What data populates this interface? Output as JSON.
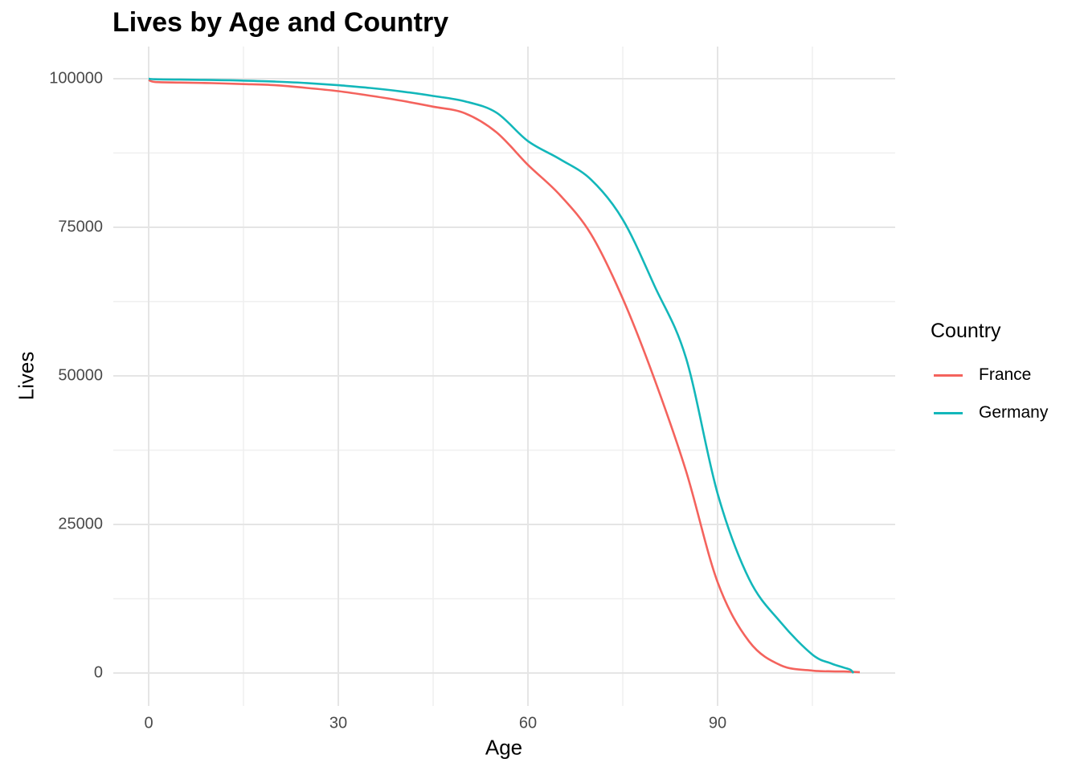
{
  "title": "Lives by Age and Country",
  "chart_data": {
    "type": "line",
    "title": "Lives by Age and Country",
    "xlabel": "Age",
    "ylabel": "Lives",
    "legend_title": "Country",
    "legend_position": "right",
    "grid": true,
    "background": "#ffffff",
    "major_grid_color": "#e5e5e5",
    "minor_grid_color": "#efefef",
    "tick_label_color": "#4a4a4a",
    "xlim": [
      0,
      113
    ],
    "ylim": [
      0,
      100000
    ],
    "x_major_ticks": [
      0,
      30,
      60,
      90
    ],
    "x_minor_gridlines": [
      15,
      45,
      75,
      105
    ],
    "y_major_ticks": [
      0,
      25000,
      50000,
      75000,
      100000
    ],
    "y_minor_gridlines": [
      12500,
      37500,
      62500,
      87500
    ],
    "series": [
      {
        "name": "France",
        "color": "#F4635D",
        "points": [
          [
            0,
            99800
          ],
          [
            1,
            99450
          ],
          [
            5,
            99350
          ],
          [
            10,
            99250
          ],
          [
            15,
            99100
          ],
          [
            20,
            98900
          ],
          [
            25,
            98450
          ],
          [
            30,
            97900
          ],
          [
            35,
            97150
          ],
          [
            40,
            96300
          ],
          [
            45,
            95300
          ],
          [
            50,
            94200
          ],
          [
            55,
            91000
          ],
          [
            60,
            85500
          ],
          [
            65,
            80500
          ],
          [
            70,
            73800
          ],
          [
            75,
            63000
          ],
          [
            80,
            49500
          ],
          [
            85,
            34000
          ],
          [
            90,
            15300
          ],
          [
            95,
            5300
          ],
          [
            100,
            1300
          ],
          [
            105,
            400
          ],
          [
            108,
            280
          ],
          [
            110,
            250
          ],
          [
            112.5,
            150
          ]
        ]
      },
      {
        "name": "Germany",
        "color": "#13B7BA",
        "points": [
          [
            0,
            100000
          ],
          [
            1,
            99900
          ],
          [
            5,
            99850
          ],
          [
            10,
            99780
          ],
          [
            15,
            99680
          ],
          [
            20,
            99520
          ],
          [
            25,
            99270
          ],
          [
            30,
            98900
          ],
          [
            35,
            98450
          ],
          [
            40,
            97850
          ],
          [
            45,
            97100
          ],
          [
            50,
            96200
          ],
          [
            55,
            94300
          ],
          [
            60,
            89500
          ],
          [
            65,
            86500
          ],
          [
            70,
            83000
          ],
          [
            75,
            76300
          ],
          [
            80,
            65200
          ],
          [
            85,
            53000
          ],
          [
            90,
            30200
          ],
          [
            95,
            15800
          ],
          [
            100,
            8500
          ],
          [
            105,
            3100
          ],
          [
            108,
            1600
          ],
          [
            110,
            900
          ],
          [
            111,
            550
          ],
          [
            111.5,
            0
          ]
        ]
      }
    ]
  }
}
